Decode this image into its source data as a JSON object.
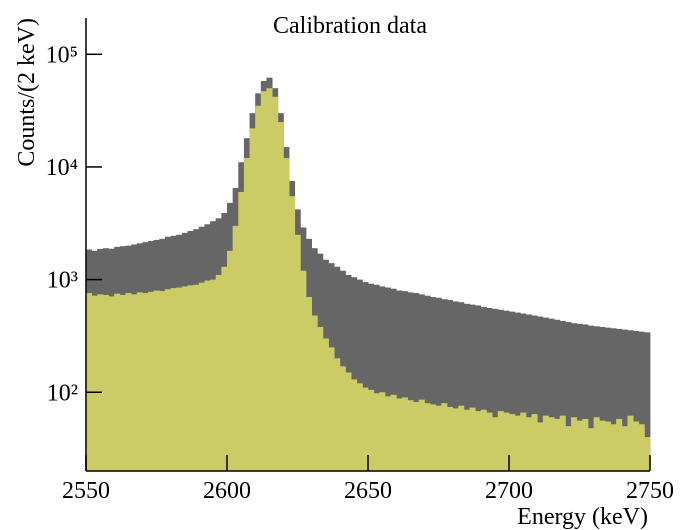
{
  "chart_data": {
    "type": "histogram",
    "title": "Calibration data",
    "xlabel": "Energy (keV)",
    "ylabel": "Counts/(2 keV)",
    "ylog": true,
    "bins": [
      2550,
      2552,
      2554,
      2556,
      2558,
      2560,
      2562,
      2564,
      2566,
      2568,
      2570,
      2572,
      2574,
      2576,
      2578,
      2580,
      2582,
      2584,
      2586,
      2588,
      2590,
      2592,
      2594,
      2596,
      2598,
      2600,
      2602,
      2604,
      2606,
      2608,
      2610,
      2612,
      2614,
      2616,
      2618,
      2620,
      2622,
      2624,
      2626,
      2628,
      2630,
      2632,
      2634,
      2636,
      2638,
      2640,
      2642,
      2644,
      2646,
      2648,
      2650,
      2652,
      2654,
      2656,
      2658,
      2660,
      2662,
      2664,
      2666,
      2668,
      2670,
      2672,
      2674,
      2676,
      2678,
      2680,
      2682,
      2684,
      2686,
      2688,
      2690,
      2692,
      2694,
      2696,
      2698,
      2700,
      2702,
      2704,
      2706,
      2708,
      2710,
      2712,
      2714,
      2716,
      2718,
      2720,
      2722,
      2724,
      2726,
      2728,
      2730,
      2732,
      2734,
      2736,
      2738,
      2740,
      2742,
      2744,
      2746,
      2748,
      2750
    ],
    "series": [
      {
        "color": "#666666",
        "values": [
          1850,
          1800,
          1870,
          1900,
          1880,
          1950,
          1980,
          2000,
          2050,
          2100,
          2150,
          2200,
          2250,
          2300,
          2400,
          2450,
          2500,
          2600,
          2700,
          2800,
          2950,
          3100,
          3300,
          3500,
          3900,
          4800,
          6500,
          11000,
          18000,
          30000,
          45000,
          58000,
          62000,
          50000,
          30000,
          15000,
          7500,
          4200,
          2900,
          2300,
          1900,
          1700,
          1500,
          1400,
          1300,
          1200,
          1100,
          1050,
          1000,
          950,
          920,
          900,
          870,
          850,
          830,
          800,
          790,
          770,
          760,
          740,
          720,
          700,
          690,
          670,
          660,
          640,
          630,
          610,
          600,
          590,
          570,
          560,
          550,
          540,
          530,
          520,
          510,
          500,
          490,
          480,
          470,
          460,
          450,
          440,
          430,
          420,
          410,
          405,
          400,
          390,
          385,
          380,
          375,
          370,
          365,
          360,
          355,
          350,
          345,
          340
        ]
      },
      {
        "color": "#cccc66",
        "values": [
          760,
          720,
          740,
          730,
          710,
          750,
          730,
          760,
          740,
          770,
          760,
          780,
          800,
          790,
          820,
          840,
          850,
          870,
          890,
          900,
          940,
          980,
          1000,
          1100,
          1300,
          1800,
          3000,
          6000,
          12000,
          22000,
          35000,
          47000,
          50000,
          42000,
          25000,
          12000,
          5500,
          2500,
          1200,
          700,
          480,
          380,
          300,
          250,
          200,
          170,
          150,
          130,
          120,
          110,
          105,
          98,
          100,
          92,
          95,
          88,
          90,
          85,
          82,
          86,
          80,
          78,
          76,
          80,
          74,
          72,
          76,
          70,
          73,
          68,
          70,
          66,
          60,
          68,
          66,
          64,
          62,
          66,
          60,
          64,
          54,
          62,
          60,
          58,
          62,
          50,
          60,
          56,
          58,
          48,
          60,
          56,
          55,
          52,
          58,
          50,
          62,
          55,
          52,
          40
        ]
      }
    ],
    "xlim": [
      2550,
      2750
    ],
    "xticks": [
      2550,
      2600,
      2650,
      2700,
      2750
    ],
    "ylim": [
      20,
      210000
    ],
    "yticks": [
      {
        "value": 100,
        "label": "10²"
      },
      {
        "value": 1000,
        "label": "10³"
      },
      {
        "value": 10000,
        "label": "10⁴"
      },
      {
        "value": 100000,
        "label": "10⁵"
      }
    ]
  }
}
